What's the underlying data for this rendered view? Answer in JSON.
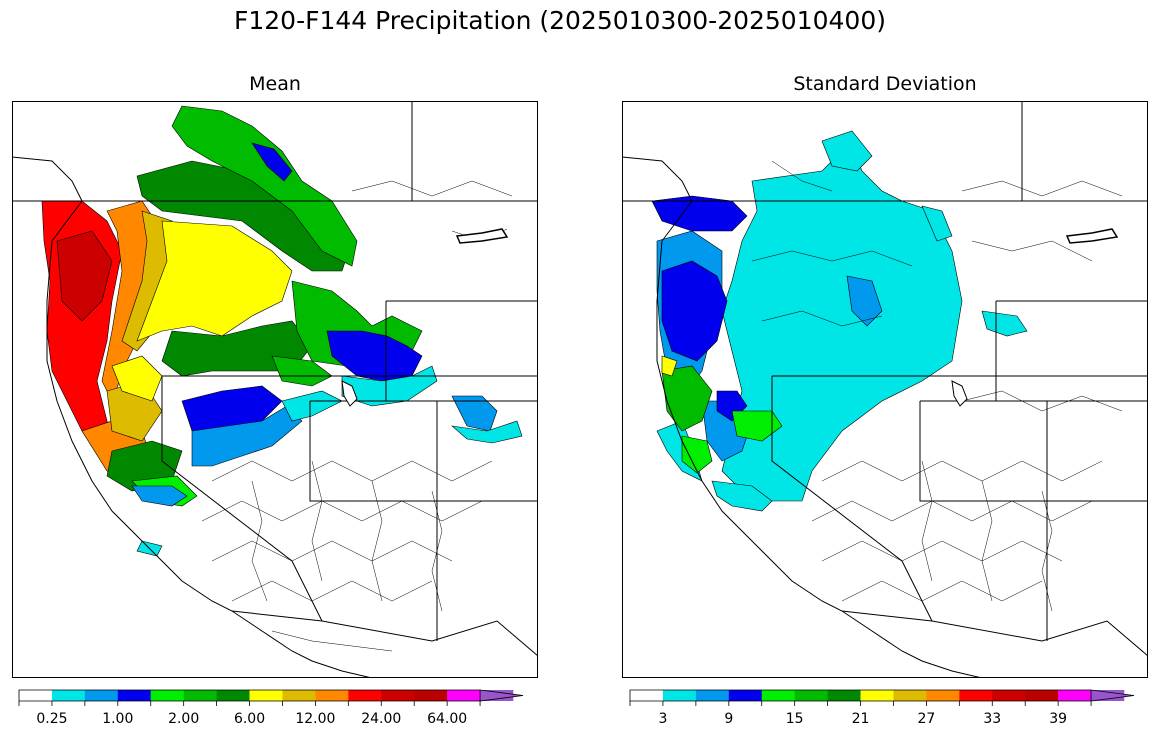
{
  "figure": {
    "title": "F120-F144 Precipitation (2025010300-2025010400)"
  },
  "panels": [
    {
      "title": "Mean",
      "colorbar": {
        "colors": [
          "#ffffff",
          "#00e5e5",
          "#0099ee",
          "#0000ee",
          "#00ee00",
          "#00bb00",
          "#008800",
          "#ffff00",
          "#ddbb00",
          "#ff8800",
          "#ff0000",
          "#cc0000",
          "#bb0000",
          "#ff00ff",
          "#9955cc"
        ],
        "tick_labels": [
          "0.25",
          "1.00",
          "2.00",
          "6.00",
          "12.00",
          "24.00",
          "64.00"
        ],
        "extend": "max"
      }
    },
    {
      "title": "Standard Deviation",
      "colorbar": {
        "colors": [
          "#ffffff",
          "#00e5e5",
          "#0099ee",
          "#0000ee",
          "#00ee00",
          "#00bb00",
          "#008800",
          "#ffff00",
          "#ddbb00",
          "#ff8800",
          "#ff0000",
          "#cc0000",
          "#bb0000",
          "#ff00ff",
          "#9955cc"
        ],
        "tick_labels": [
          "3",
          "9",
          "15",
          "21",
          "27",
          "33",
          "39"
        ],
        "extend": "max"
      }
    }
  ]
}
